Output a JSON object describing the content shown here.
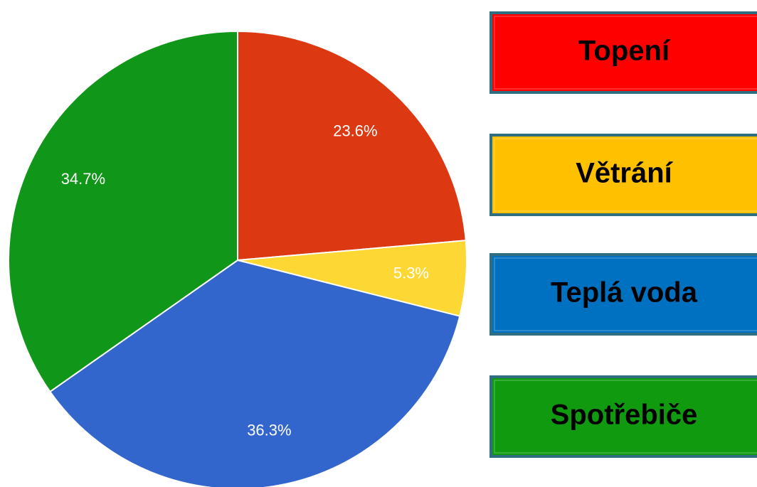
{
  "chart_data": {
    "type": "pie",
    "categories": [
      "Topení",
      "Větrání",
      "Teplá voda",
      "Spotřebiče"
    ],
    "values": [
      23.6,
      5.3,
      36.3,
      34.7
    ],
    "value_labels": [
      "23.6%",
      "5.3%",
      "36.3%",
      "34.7%"
    ],
    "colors": [
      "#dc3912",
      "#fdd835",
      "#3366cc",
      "#109618"
    ],
    "legend_colors": [
      "#ff0000",
      "#ffc000",
      "#0070c0",
      "#0f9a0f"
    ]
  }
}
